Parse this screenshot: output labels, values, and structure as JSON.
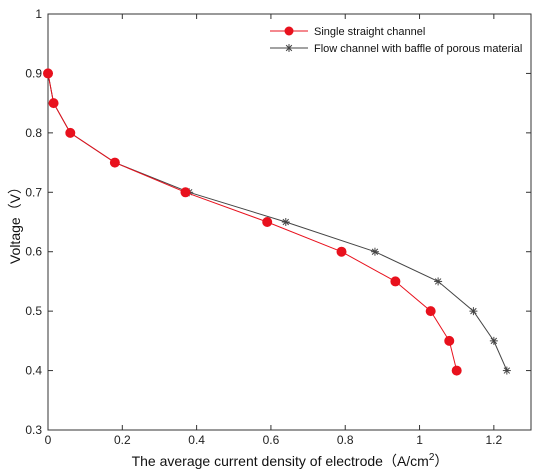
{
  "chart_data": {
    "type": "line",
    "xlabel": "The average current density of electrode（A/cm",
    "xlabel_superscript": "2",
    "xlabel_suffix": "）",
    "ylabel": "Voltage（V）",
    "xlim": [
      0,
      1.3
    ],
    "ylim": [
      0.3,
      1.0
    ],
    "x_ticks": [
      0,
      0.2,
      0.4,
      0.6,
      0.8,
      1,
      1.2
    ],
    "x_tick_labels": [
      "0",
      "0.2",
      "0.4",
      "0.6",
      "0.8",
      "1",
      "1.2"
    ],
    "y_ticks": [
      0.3,
      0.4,
      0.5,
      0.6,
      0.7,
      0.8,
      0.9,
      1.0
    ],
    "y_tick_labels": [
      "0.3",
      "0.4",
      "0.5",
      "0.6",
      "0.7",
      "0.8",
      "0.9",
      "1"
    ],
    "grid": false,
    "legend_position": "top-right",
    "series": [
      {
        "name": "Single straight channel",
        "color": "#e8111d",
        "marker": "circle",
        "x": [
          0,
          0.015,
          0.06,
          0.18,
          0.37,
          0.59,
          0.79,
          0.935,
          1.03,
          1.08,
          1.1
        ],
        "y": [
          0.9,
          0.85,
          0.8,
          0.75,
          0.7,
          0.65,
          0.6,
          0.55,
          0.5,
          0.45,
          0.4
        ]
      },
      {
        "name": "Flow channel with baffle of porous material",
        "color": "#444444",
        "marker": "star",
        "x": [
          0,
          0.015,
          0.06,
          0.18,
          0.38,
          0.64,
          0.88,
          1.05,
          1.145,
          1.2,
          1.235
        ],
        "y": [
          0.9,
          0.85,
          0.8,
          0.75,
          0.7,
          0.65,
          0.6,
          0.55,
          0.5,
          0.45,
          0.4
        ]
      }
    ]
  }
}
